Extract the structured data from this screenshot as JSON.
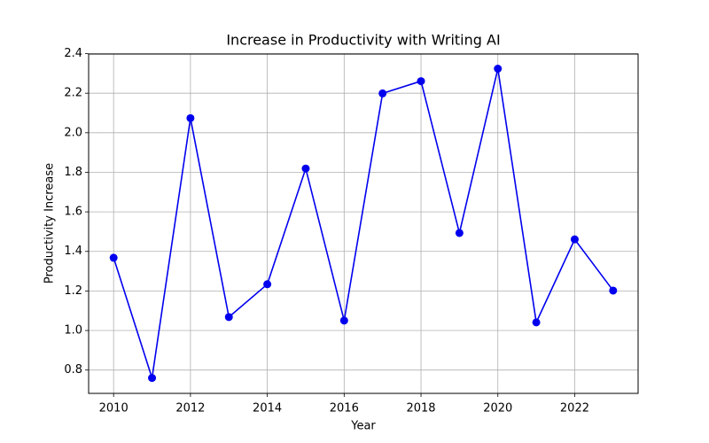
{
  "chart_data": {
    "type": "line",
    "title": "Increase in Productivity with Writing AI",
    "x_label": "Year",
    "y_label": "Productivity Increase",
    "x": [
      2010,
      2011,
      2012,
      2013,
      2014,
      2015,
      2016,
      2017,
      2018,
      2019,
      2020,
      2021,
      2022,
      2023
    ],
    "values": [
      1.368,
      0.76,
      2.074,
      1.068,
      1.234,
      1.819,
      1.05,
      2.199,
      2.261,
      1.493,
      2.324,
      1.041,
      1.461,
      1.202
    ],
    "color": "#0000ee",
    "marker": true,
    "xlim": [
      2009.35,
      2023.65
    ],
    "xticks": [
      2010,
      2012,
      2014,
      2016,
      2018,
      2020,
      2022
    ],
    "ylim": [
      0.682,
      2.398
    ],
    "yticks": [
      0.8,
      {
        "value": 1,
        "label": "1.0"
      },
      1.2,
      1.4,
      1.6,
      1.8,
      {
        "value": 2,
        "label": "2.0"
      },
      2.2,
      2.4
    ],
    "grid": true
  }
}
